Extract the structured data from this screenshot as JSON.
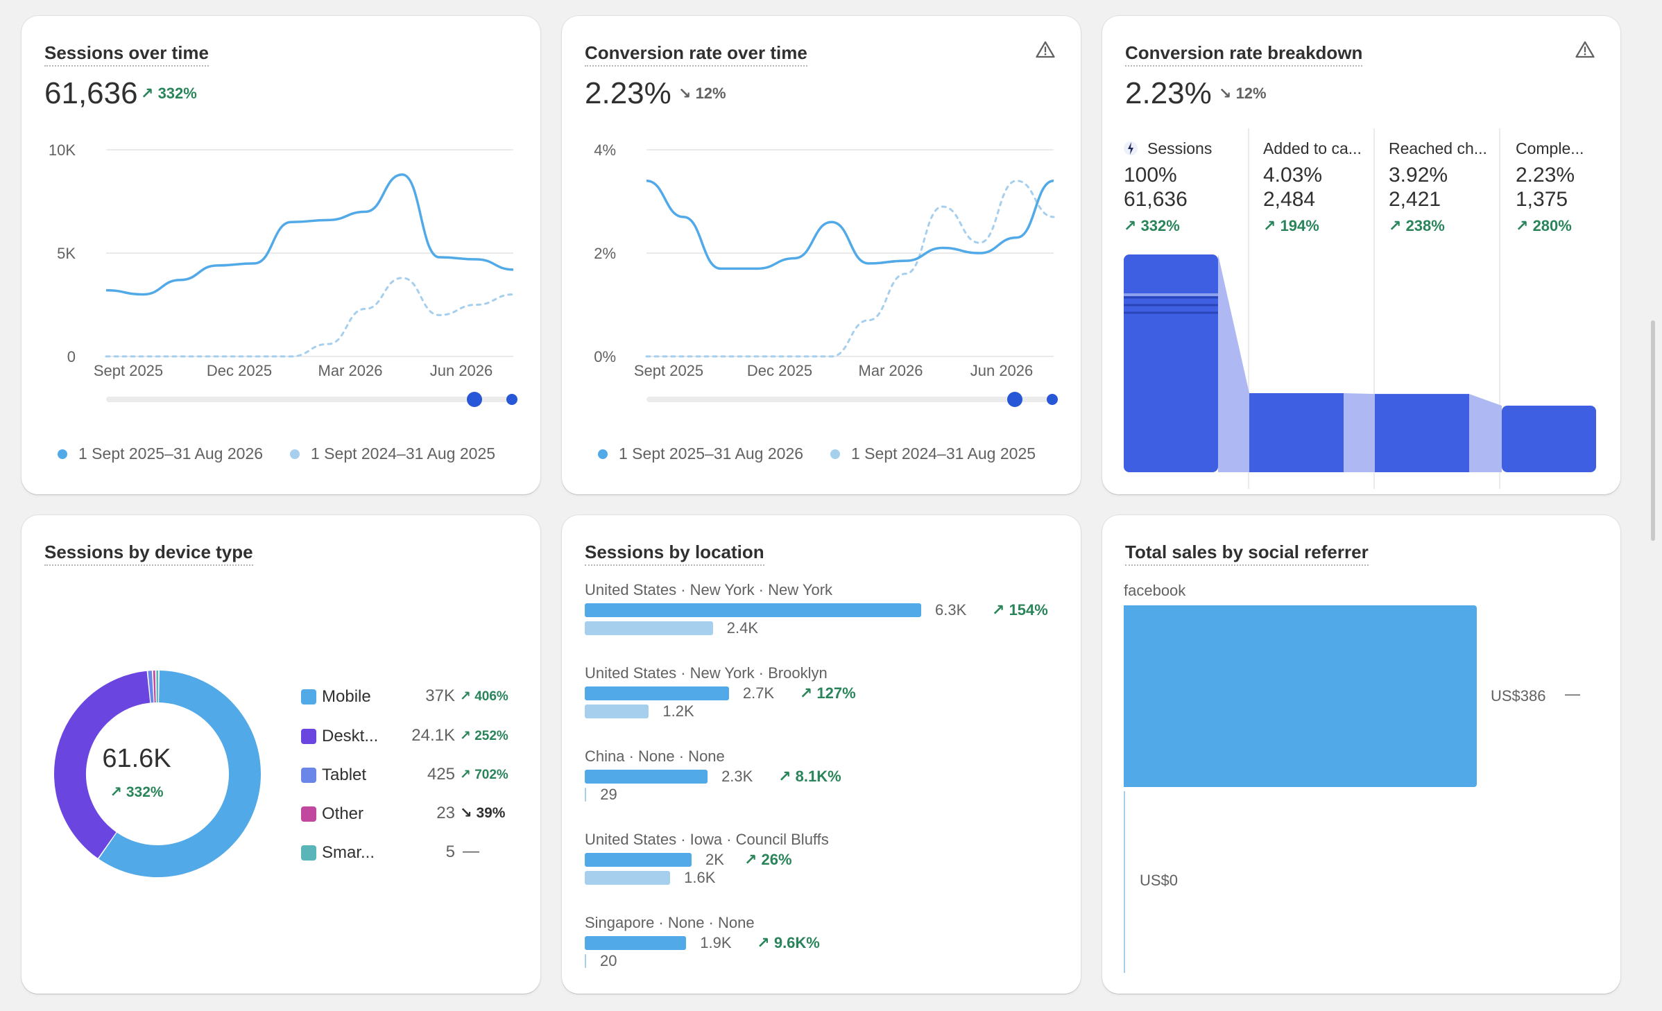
{
  "colors": {
    "current_series": "#51a9e8",
    "previous_series": "#a6cfee",
    "funnel_bar": "#3f5fe3",
    "funnel_connector": "#aeb9f4",
    "positive": "#29845a"
  },
  "sessions_over_time": {
    "title": "Sessions over time",
    "value": "61,636",
    "change": "332%",
    "change_dir": "up",
    "y_ticks": [
      "10K",
      "5K",
      "0"
    ],
    "x_ticks": [
      "Sept 2025",
      "Dec 2025",
      "Mar 2026",
      "Jun 2026"
    ],
    "legend": [
      "1 Sept 2025–31 Aug 2026",
      "1 Sept 2024–31 Aug 2025"
    ],
    "chart_data": {
      "type": "line",
      "x": [
        "Sept 2025",
        "Oct 2025",
        "Nov 2025",
        "Dec 2025",
        "Jan 2026",
        "Feb 2026",
        "Mar 2026",
        "Apr 2026",
        "May 2026",
        "Jun 2026",
        "Jul 2026",
        "Aug 2026"
      ],
      "ylim": [
        0,
        10000
      ],
      "series": [
        {
          "values": [
            3200,
            3000,
            3700,
            4400,
            4500,
            6500,
            6600,
            7000,
            8800,
            4800,
            4700,
            4200
          ]
        },
        {
          "values": [
            0,
            0,
            0,
            0,
            0,
            0,
            600,
            2300,
            3800,
            2000,
            2500,
            3000
          ]
        }
      ]
    }
  },
  "conversion_over_time": {
    "title": "Conversion rate over time",
    "value": "2.23%",
    "change": "12%",
    "change_dir": "down",
    "y_ticks": [
      "4%",
      "2%",
      "0%"
    ],
    "x_ticks": [
      "Sept 2025",
      "Dec 2025",
      "Mar 2026",
      "Jun 2026"
    ],
    "legend": [
      "1 Sept 2025–31 Aug 2026",
      "1 Sept 2024–31 Aug 2025"
    ],
    "chart_data": {
      "type": "line",
      "x": [
        "Sept 2025",
        "Oct 2025",
        "Nov 2025",
        "Dec 2025",
        "Jan 2026",
        "Feb 2026",
        "Mar 2026",
        "Apr 2026",
        "May 2026",
        "Jun 2026",
        "Jul 2026",
        "Aug 2026"
      ],
      "ylim": [
        0,
        4
      ],
      "series": [
        {
          "values": [
            3.4,
            2.7,
            1.7,
            1.7,
            1.9,
            2.6,
            1.8,
            1.85,
            2.1,
            2.0,
            2.3,
            3.4
          ]
        },
        {
          "values": [
            0,
            0,
            0,
            0,
            0,
            0,
            0.7,
            1.6,
            2.9,
            2.2,
            3.4,
            2.7
          ]
        }
      ]
    }
  },
  "conversion_breakdown": {
    "title": "Conversion rate breakdown",
    "value": "2.23%",
    "change": "12%",
    "change_dir": "down",
    "steps": [
      {
        "name": "Sessions",
        "pct": "100%",
        "count": "61,636",
        "change": "332%"
      },
      {
        "name": "Added to ca...",
        "pct": "4.03%",
        "count": "2,484",
        "change": "194%"
      },
      {
        "name": "Reached ch...",
        "pct": "3.92%",
        "count": "2,421",
        "change": "238%"
      },
      {
        "name": "Comple...",
        "pct": "2.23%",
        "count": "1,375",
        "change": "280%"
      }
    ],
    "chart_data": {
      "type": "bar",
      "categories": [
        "Sessions",
        "Added to ca...",
        "Reached ch...",
        "Comple..."
      ],
      "values": [
        100,
        4.03,
        3.92,
        2.23
      ]
    }
  },
  "device_type": {
    "title": "Sessions by device type",
    "center_value": "61.6K",
    "center_change": "332%",
    "rows": [
      {
        "name": "Mobile",
        "value": "37K",
        "change": "406%",
        "dir": "up",
        "color": "#51a9e8"
      },
      {
        "name": "Deskt...",
        "value": "24.1K",
        "change": "252%",
        "dir": "up",
        "color": "#6a45e0"
      },
      {
        "name": "Tablet",
        "value": "425",
        "change": "702%",
        "dir": "up",
        "color": "#6a86e8"
      },
      {
        "name": "Other",
        "value": "23",
        "change": "39%",
        "dir": "down",
        "color": "#c1479f"
      },
      {
        "name": "Smar...",
        "value": "5",
        "change": "—",
        "dir": "flat",
        "color": "#5ab5b8"
      }
    ],
    "chart_data": {
      "type": "pie",
      "categories": [
        "Mobile",
        "Desktop",
        "Tablet",
        "Other",
        "Smart TV"
      ],
      "values": [
        37000,
        24100,
        425,
        23,
        5
      ]
    }
  },
  "location": {
    "title": "Sessions by location",
    "rows": [
      {
        "label": "United States · New York · New York",
        "current": "6.3K",
        "previous": "2.4K",
        "change": "154%"
      },
      {
        "label": "United States · New York · Brooklyn",
        "current": "2.7K",
        "previous": "1.2K",
        "change": "127%"
      },
      {
        "label": "China · None · None",
        "current": "2.3K",
        "previous": "29",
        "change": "8.1K%"
      },
      {
        "label": "United States · Iowa · Council Bluffs",
        "current": "2K",
        "previous": "1.6K",
        "change": "26%"
      },
      {
        "label": "Singapore · None · None",
        "current": "1.9K",
        "previous": "20",
        "change": "9.6K%"
      }
    ],
    "chart_data": {
      "type": "bar",
      "categories": [
        "United States · New York · New York",
        "United States · New York · Brooklyn",
        "China · None · None",
        "United States · Iowa · Council Bluffs",
        "Singapore · None · None"
      ],
      "series": [
        {
          "values": [
            6300,
            2700,
            2300,
            2000,
            1900
          ]
        },
        {
          "values": [
            2400,
            1200,
            29,
            1600,
            20
          ]
        }
      ]
    }
  },
  "social": {
    "title": "Total sales by social referrer",
    "category": "facebook",
    "current": "US$386",
    "current_change": "—",
    "previous": "US$0",
    "chart_data": {
      "type": "bar",
      "categories": [
        "facebook"
      ],
      "series": [
        {
          "values": [
            386
          ]
        },
        {
          "values": [
            0
          ]
        }
      ]
    }
  }
}
